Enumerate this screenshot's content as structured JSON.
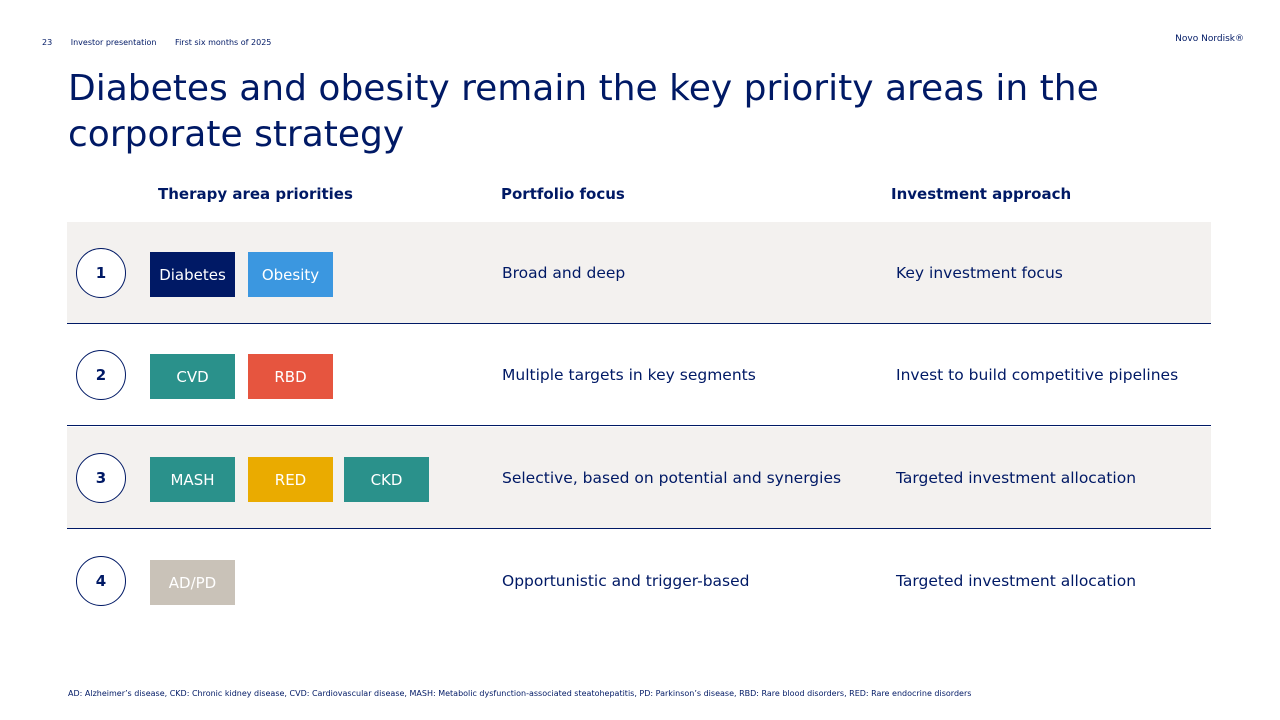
{
  "header": {
    "page_number": "23",
    "presentation": "Investor presentation",
    "period": "First six months of 2025",
    "brand": "Novo Nordisk®"
  },
  "title": "Diabetes and obesity remain the key priority areas in the corporate strategy",
  "columns": {
    "therapy": "Therapy area priorities",
    "portfolio": "Portfolio focus",
    "investment": "Investment approach"
  },
  "rows": [
    {
      "number": "1",
      "tags": [
        {
          "label": "Diabetes",
          "color": "#001965"
        },
        {
          "label": "Obesity",
          "color": "#3b97e0"
        }
      ],
      "portfolio": "Broad and deep",
      "investment": "Key investment focus"
    },
    {
      "number": "2",
      "tags": [
        {
          "label": "CVD",
          "color": "#2a918b"
        },
        {
          "label": "RBD",
          "color": "#e6553f"
        }
      ],
      "portfolio": "Multiple targets in key segments",
      "investment": "Invest to build competitive pipelines"
    },
    {
      "number": "3",
      "tags": [
        {
          "label": "MASH",
          "color": "#2a918b"
        },
        {
          "label": "RED",
          "color": "#eaab00"
        },
        {
          "label": "CKD",
          "color": "#2a918b"
        }
      ],
      "portfolio": "Selective, based on potential and synergies",
      "investment": "Targeted investment allocation"
    },
    {
      "number": "4",
      "tags": [
        {
          "label": "AD/PD",
          "color": "#c9c2b8"
        }
      ],
      "portfolio": "Opportunistic and trigger-based",
      "investment": "Targeted investment allocation"
    }
  ],
  "footnote": "AD: Alzheimer’s disease, CKD: Chronic kidney disease, CVD: Cardiovascular disease, MASH: Metabolic dysfunction-associated steatohepatitis, PD: Parkinson’s disease, RBD: Rare blood disorders, RED: Rare endocrine disorders"
}
